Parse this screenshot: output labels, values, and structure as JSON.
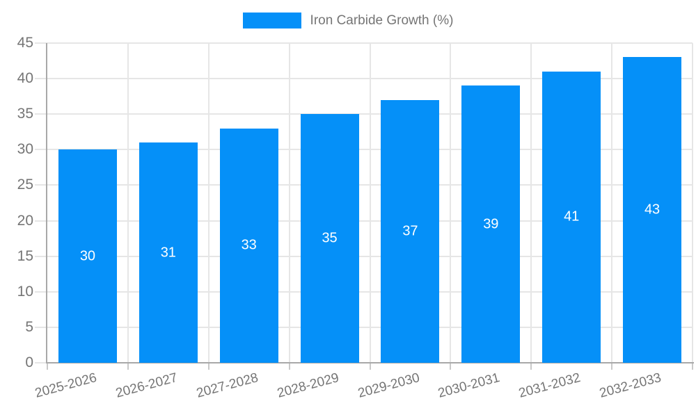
{
  "legend": {
    "label": "Iron Carbide Growth (%)",
    "swatch_color": "#0590f8",
    "text_color": "#757575"
  },
  "chart_data": {
    "type": "bar",
    "title": "Iron Carbide Growth (%)",
    "categories": [
      "2025-2026",
      "2026-2027",
      "2027-2028",
      "2028-2029",
      "2029-2030",
      "2030-2031",
      "2031-2032",
      "2032-2033"
    ],
    "values": [
      30,
      31,
      33,
      35,
      37,
      39,
      41,
      43
    ],
    "bar_value_labels": [
      "30",
      "31",
      "33",
      "35",
      "37",
      "39",
      "41",
      "43"
    ],
    "xlabel": "",
    "ylabel": "",
    "ylim": [
      0,
      45
    ],
    "ytick_step": 5,
    "yticks": [
      0,
      5,
      10,
      15,
      20,
      25,
      30,
      35,
      40,
      45
    ],
    "grid": true,
    "legend_position": "top-center",
    "x_label_rotation_deg": -15,
    "bar_color": "#0590f8",
    "bar_label_color": "#ffffff",
    "axis_text_color": "#757575",
    "gridline_color": "#e6e6e6",
    "tick_color": "#c9c9c9",
    "axis_line_color": "#a8a8a8"
  }
}
